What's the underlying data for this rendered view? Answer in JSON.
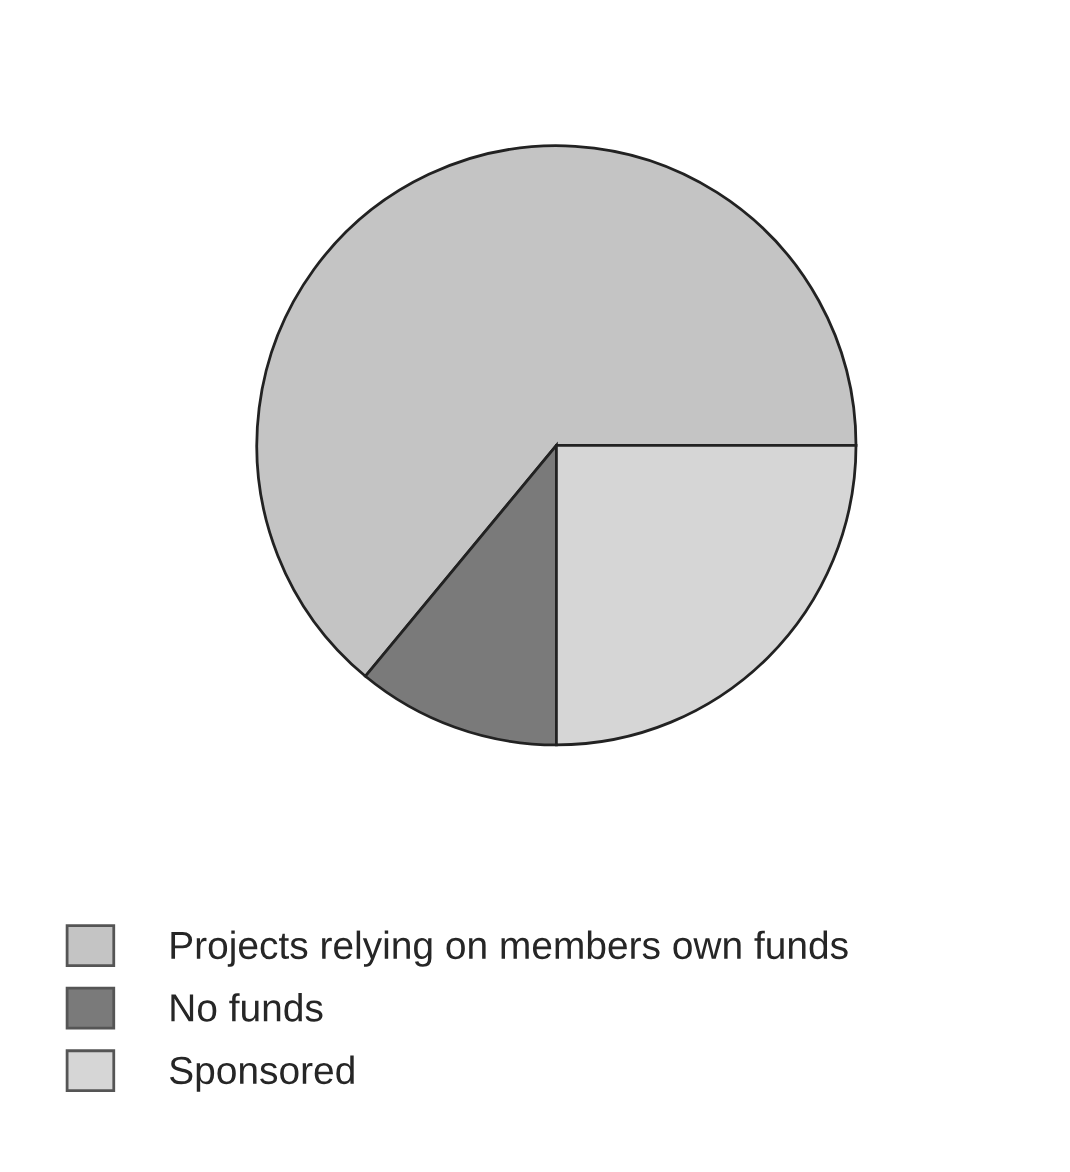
{
  "chart_data": {
    "type": "pie",
    "categories": [
      "Projects relying on members own funds",
      "No funds",
      "Sponsored"
    ],
    "values": [
      64,
      11,
      25
    ],
    "colors": [
      "#c4c4c4",
      "#7a7a7a",
      "#d6d6d6"
    ],
    "legend": "bottom"
  }
}
